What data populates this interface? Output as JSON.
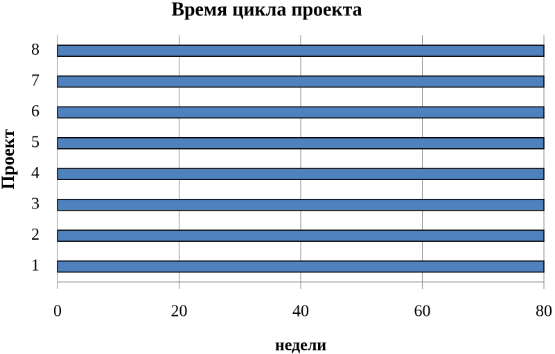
{
  "chart_data": {
    "type": "barh",
    "title": "Время цикла проекта",
    "categories": [
      "1",
      "2",
      "3",
      "4",
      "5",
      "6",
      "7",
      "8"
    ],
    "values": [
      80,
      80,
      80,
      80,
      80,
      80,
      80,
      80
    ],
    "color": "#4f81bd",
    "xlim": [
      0,
      80
    ],
    "xticks": [
      0,
      20,
      40,
      60,
      80
    ],
    "xlabel": "недели",
    "ylabel": "Проект",
    "grid": true
  }
}
